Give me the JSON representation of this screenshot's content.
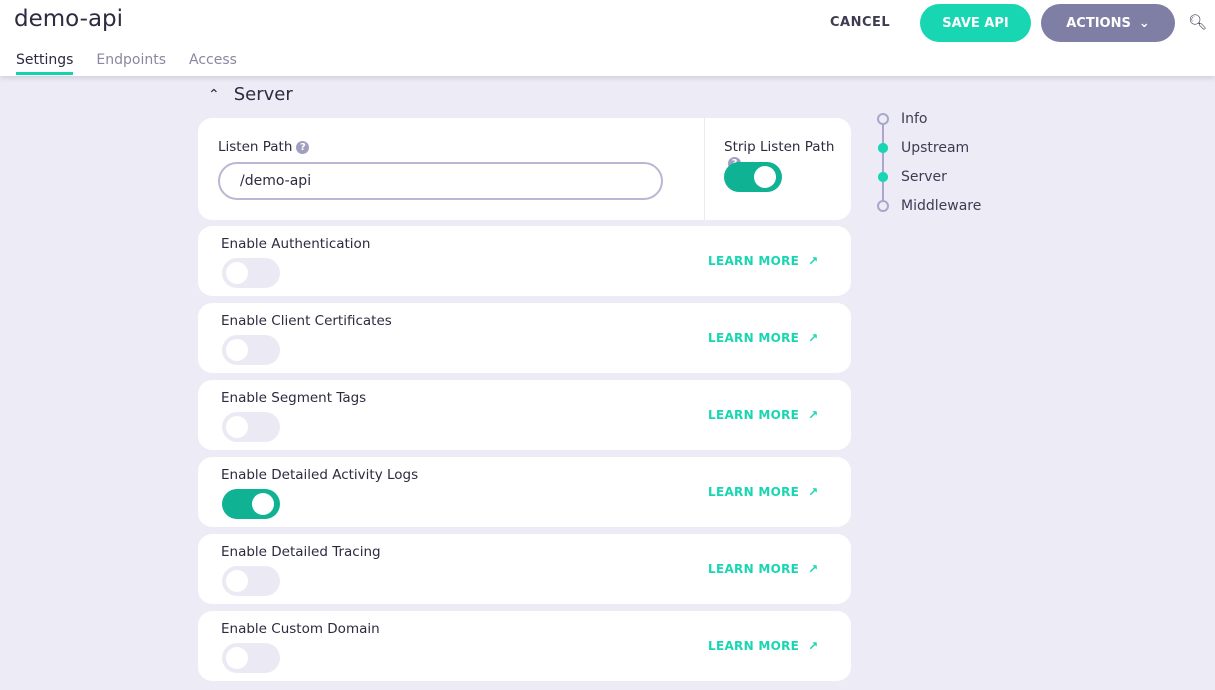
{
  "header": {
    "title": "demo-api",
    "tabs": [
      {
        "label": "Settings",
        "active": true
      },
      {
        "label": "Endpoints"
      },
      {
        "label": "Access"
      }
    ],
    "cancel_label": "CANCEL",
    "save_label": "SAVE API",
    "actions_label": "ACTIONS"
  },
  "section": {
    "title": "Server",
    "listen_path_label": "Listen Path",
    "listen_path_value": "/demo-api",
    "strip_label": "Strip Listen Path",
    "strip_on": true
  },
  "rows": [
    {
      "label": "Enable Authentication",
      "on": false,
      "link": "LEARN MORE"
    },
    {
      "label": "Enable Client Certificates",
      "on": false,
      "link": "LEARN MORE"
    },
    {
      "label": "Enable Segment Tags",
      "on": false,
      "link": "LEARN MORE"
    },
    {
      "label": "Enable Detailed Activity Logs",
      "on": true,
      "link": "LEARN MORE"
    },
    {
      "label": "Enable Detailed Tracing",
      "on": false,
      "link": "LEARN MORE"
    },
    {
      "label": "Enable Custom Domain",
      "on": false,
      "link": "LEARN MORE"
    }
  ],
  "nav": [
    {
      "label": "Info",
      "done": false
    },
    {
      "label": "Upstream",
      "done": true
    },
    {
      "label": "Server",
      "done": true
    },
    {
      "label": "Middleware",
      "done": false
    }
  ],
  "colors": {
    "accent": "#19d6b3",
    "toggle_on": "#0fb394",
    "actions": "#7f7ea5",
    "background": "#ecebf6"
  }
}
